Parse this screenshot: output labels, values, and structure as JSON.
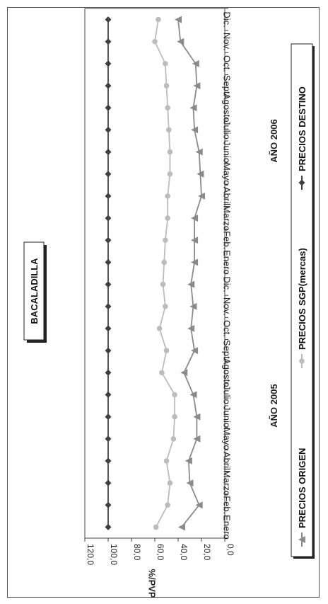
{
  "chart_data": {
    "type": "line",
    "title": "BACALADILLA",
    "ylabel": "%/PVP",
    "xlabel": "",
    "ylim": [
      0,
      120
    ],
    "yticks": [
      "0,0",
      "20,0",
      "40,0",
      "60,0",
      "80,0",
      "100,0",
      "120,0"
    ],
    "categories": [
      "Enero",
      "Feb.",
      "Marzo",
      "Abril",
      "Mayo",
      "Junio",
      "Julio",
      "Agosto",
      "Sept.",
      "Oct.",
      "Nov.",
      "Dic.",
      "Enero",
      "Feb.",
      "Marzo",
      "Abril",
      "Mayo",
      "Junio",
      "Julio",
      "Agosto",
      "Sept.",
      "Oct.",
      "Nov.",
      "Dic."
    ],
    "year_labels": [
      {
        "text": "AÑO 2005",
        "start": 0,
        "end": 11
      },
      {
        "text": "AÑO 2006",
        "start": 12,
        "end": 23
      }
    ],
    "grid": false,
    "legend_position": "right",
    "series": [
      {
        "name": "PRECIOS ORIGEN",
        "color": "#8a8a8a",
        "marker": "triangle",
        "values": [
          37,
          22,
          30,
          31,
          24,
          24,
          27,
          35,
          26,
          29,
          27,
          29,
          26,
          26,
          26,
          20,
          21,
          22,
          26,
          27,
          24,
          25,
          38,
          40
        ]
      },
      {
        "name": "PRECIOS SGP(mercas)",
        "color": "#bcbcbc",
        "marker": "circle",
        "values": [
          59,
          49,
          47,
          50,
          44,
          43,
          43,
          54,
          50,
          56,
          51,
          53,
          52,
          51,
          49,
          49,
          47,
          47,
          48,
          49,
          50,
          51,
          60,
          57
        ]
      },
      {
        "name": "PRECIOS DESTINO",
        "color": "#404040",
        "marker": "diamond",
        "values": [
          100,
          100,
          100,
          100,
          100,
          100,
          100,
          100,
          100,
          100,
          100,
          100,
          100,
          100,
          100,
          100,
          100,
          100,
          100,
          100,
          100,
          100,
          100,
          100
        ]
      }
    ]
  }
}
